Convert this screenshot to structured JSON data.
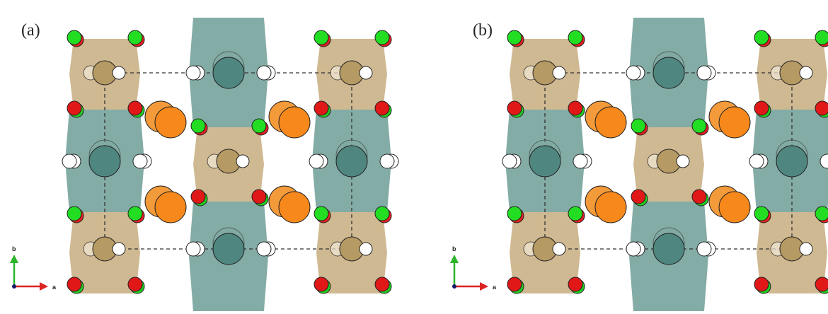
{
  "panels": [
    {
      "label": "(a)",
      "axis_y": "b",
      "axis_x": "a"
    },
    {
      "label": "(b)",
      "axis_y": "b",
      "axis_x": "a"
    }
  ]
}
